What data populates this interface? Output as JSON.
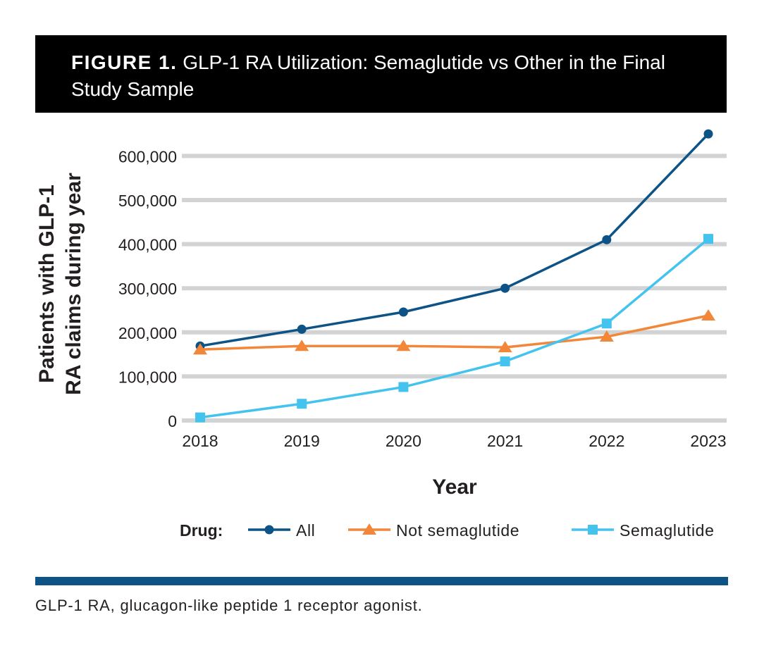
{
  "header": {
    "figure_label": "FIGURE 1.",
    "title": "GLP-1 RA Utilization: Semaglutide vs Other in the Final Study Sample"
  },
  "chart_data": {
    "type": "line",
    "categories": [
      "2018",
      "2019",
      "2020",
      "2021",
      "2022",
      "2023"
    ],
    "series": [
      {
        "name": "All",
        "values": [
          169000,
          207000,
          246000,
          300000,
          410000,
          650000
        ],
        "color": "#0d5386",
        "marker": "circle"
      },
      {
        "name": "Not semaglutide",
        "values": [
          161000,
          169000,
          169000,
          166000,
          190000,
          238000
        ],
        "color": "#f2873a",
        "marker": "triangle"
      },
      {
        "name": "Semaglutide",
        "values": [
          7000,
          38000,
          76000,
          134000,
          220000,
          412000
        ],
        "color": "#44c3ee",
        "marker": "square"
      }
    ],
    "ylabel_lines": [
      "Patients with GLP-1",
      "RA claims during year"
    ],
    "xlabel": "Year",
    "yticks": [
      0,
      100000,
      200000,
      300000,
      400000,
      500000,
      600000
    ],
    "ytick_labels": [
      "0",
      "100,000",
      "200,000",
      "300,000",
      "400,000",
      "500,000",
      "600,000"
    ],
    "ylim": [
      0,
      650000
    ],
    "grid": true,
    "grid_color": "#d1d3d4",
    "legend_title": "Drug:",
    "legend_position": "bottom"
  },
  "rule_color": "#0d5386",
  "footnote": "GLP-1 RA, glucagon-like peptide 1 receptor agonist."
}
